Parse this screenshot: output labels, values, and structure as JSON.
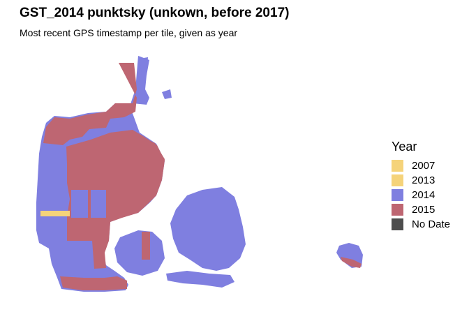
{
  "title": "GST_2014 punktsky (unkown, before 2017)",
  "subtitle": "Most recent GPS timestamp per tile, given as year",
  "legend": {
    "title": "Year",
    "items": [
      {
        "label": "2007",
        "color": "#f5d37a"
      },
      {
        "label": "2013",
        "color": "#f5d37a"
      },
      {
        "label": "2014",
        "color": "#7f7fe0"
      },
      {
        "label": "2015",
        "color": "#be6672"
      },
      {
        "label": "No Date",
        "color": "#4d4d4d"
      }
    ]
  }
}
